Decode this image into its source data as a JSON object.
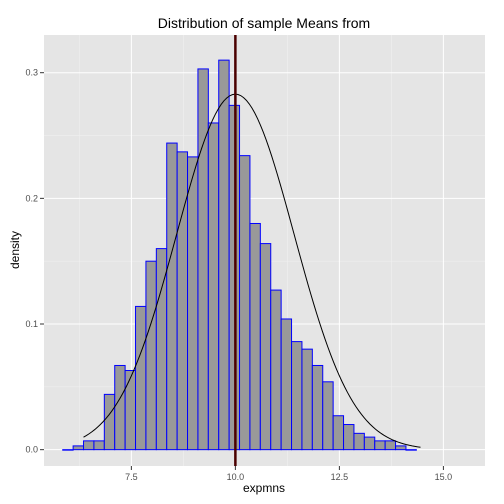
{
  "chart_data": {
    "type": "bar",
    "title": "Distribution of sample Means from",
    "xlabel": "expmns",
    "ylabel": "density",
    "xlim": [
      5.4,
      16.0
    ],
    "ylim": [
      -0.013,
      0.33
    ],
    "x_ticks": [
      7.5,
      10.0,
      12.5,
      15.0
    ],
    "x_tick_labels": [
      "7.5",
      "10.0",
      "12.5",
      "15.0"
    ],
    "y_ticks": [
      0.0,
      0.1,
      0.2,
      0.3
    ],
    "y_tick_labels": [
      "0.0",
      "0.1",
      "0.2",
      "0.3"
    ],
    "grid": true,
    "histogram": {
      "bin_width": 0.25,
      "bins": [
        {
          "x0": 5.85,
          "density": 0.0
        },
        {
          "x0": 6.1,
          "density": 0.003
        },
        {
          "x0": 6.35,
          "density": 0.007
        },
        {
          "x0": 6.6,
          "density": 0.007
        },
        {
          "x0": 6.85,
          "density": 0.044
        },
        {
          "x0": 7.1,
          "density": 0.067
        },
        {
          "x0": 7.35,
          "density": 0.063
        },
        {
          "x0": 7.6,
          "density": 0.114
        },
        {
          "x0": 7.85,
          "density": 0.15
        },
        {
          "x0": 8.1,
          "density": 0.16
        },
        {
          "x0": 8.35,
          "density": 0.244
        },
        {
          "x0": 8.6,
          "density": 0.237
        },
        {
          "x0": 8.85,
          "density": 0.233
        },
        {
          "x0": 9.1,
          "density": 0.303
        },
        {
          "x0": 9.35,
          "density": 0.26
        },
        {
          "x0": 9.6,
          "density": 0.31
        },
        {
          "x0": 9.85,
          "density": 0.274
        },
        {
          "x0": 10.1,
          "density": 0.234
        },
        {
          "x0": 10.35,
          "density": 0.18
        },
        {
          "x0": 10.6,
          "density": 0.164
        },
        {
          "x0": 10.85,
          "density": 0.127
        },
        {
          "x0": 11.1,
          "density": 0.104
        },
        {
          "x0": 11.35,
          "density": 0.086
        },
        {
          "x0": 11.6,
          "density": 0.08
        },
        {
          "x0": 11.85,
          "density": 0.067
        },
        {
          "x0": 12.1,
          "density": 0.054
        },
        {
          "x0": 12.35,
          "density": 0.027
        },
        {
          "x0": 12.6,
          "density": 0.02
        },
        {
          "x0": 12.85,
          "density": 0.013
        },
        {
          "x0": 13.1,
          "density": 0.01
        },
        {
          "x0": 13.35,
          "density": 0.007
        },
        {
          "x0": 13.6,
          "density": 0.007
        },
        {
          "x0": 13.85,
          "density": 0.003
        },
        {
          "x0": 14.1,
          "density": 0.0
        }
      ],
      "fill": "#999999",
      "stroke": "#0000ff"
    },
    "normal_curve": {
      "mean": 10.0,
      "sd": 1.41,
      "x_range": [
        6.35,
        14.45
      ],
      "color": "#000000"
    },
    "vline": {
      "x": 10.0,
      "color": "#4a0000"
    },
    "colors": {
      "panel_background": "#e5e5e5",
      "grid_major": "#ffffff",
      "grid_minor": "#f2f2f2"
    }
  }
}
